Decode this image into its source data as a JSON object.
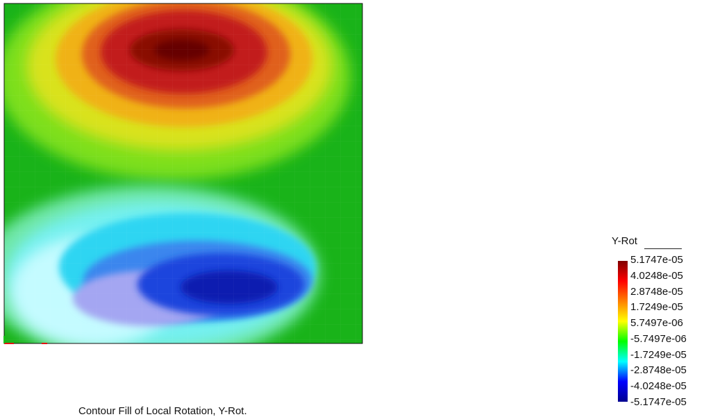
{
  "caption": "Contour Fill of Local Rotation, Y-Rot.",
  "chart_data": {
    "type": "heatmap",
    "title": "Contour Fill of Local Rotation, Y-Rot.",
    "colorbar": {
      "title": "Y-Rot",
      "placement": "right",
      "range": [
        -5.1747e-05,
        5.1747e-05
      ],
      "tick_labels": [
        "5.1747e-05",
        "4.0248e-05",
        "2.8748e-05",
        "1.7249e-05",
        "5.7497e-06",
        "-5.7497e-06",
        "-1.7249e-05",
        "-2.8748e-05",
        "-4.0248e-05",
        "-5.1747e-05"
      ],
      "colors": [
        "#00008f",
        "#0000ff",
        "#00ffff",
        "#00ff00",
        "#ffff00",
        "#ff8000",
        "#ff0000",
        "#800000"
      ]
    },
    "field": {
      "extrema": [
        {
          "kind": "max",
          "value": 5.1747e-05,
          "u": 0.5,
          "v": 0.86
        },
        {
          "kind": "min",
          "value": -5.1747e-05,
          "u": 0.55,
          "v": 0.14
        }
      ]
    },
    "grid": false
  }
}
